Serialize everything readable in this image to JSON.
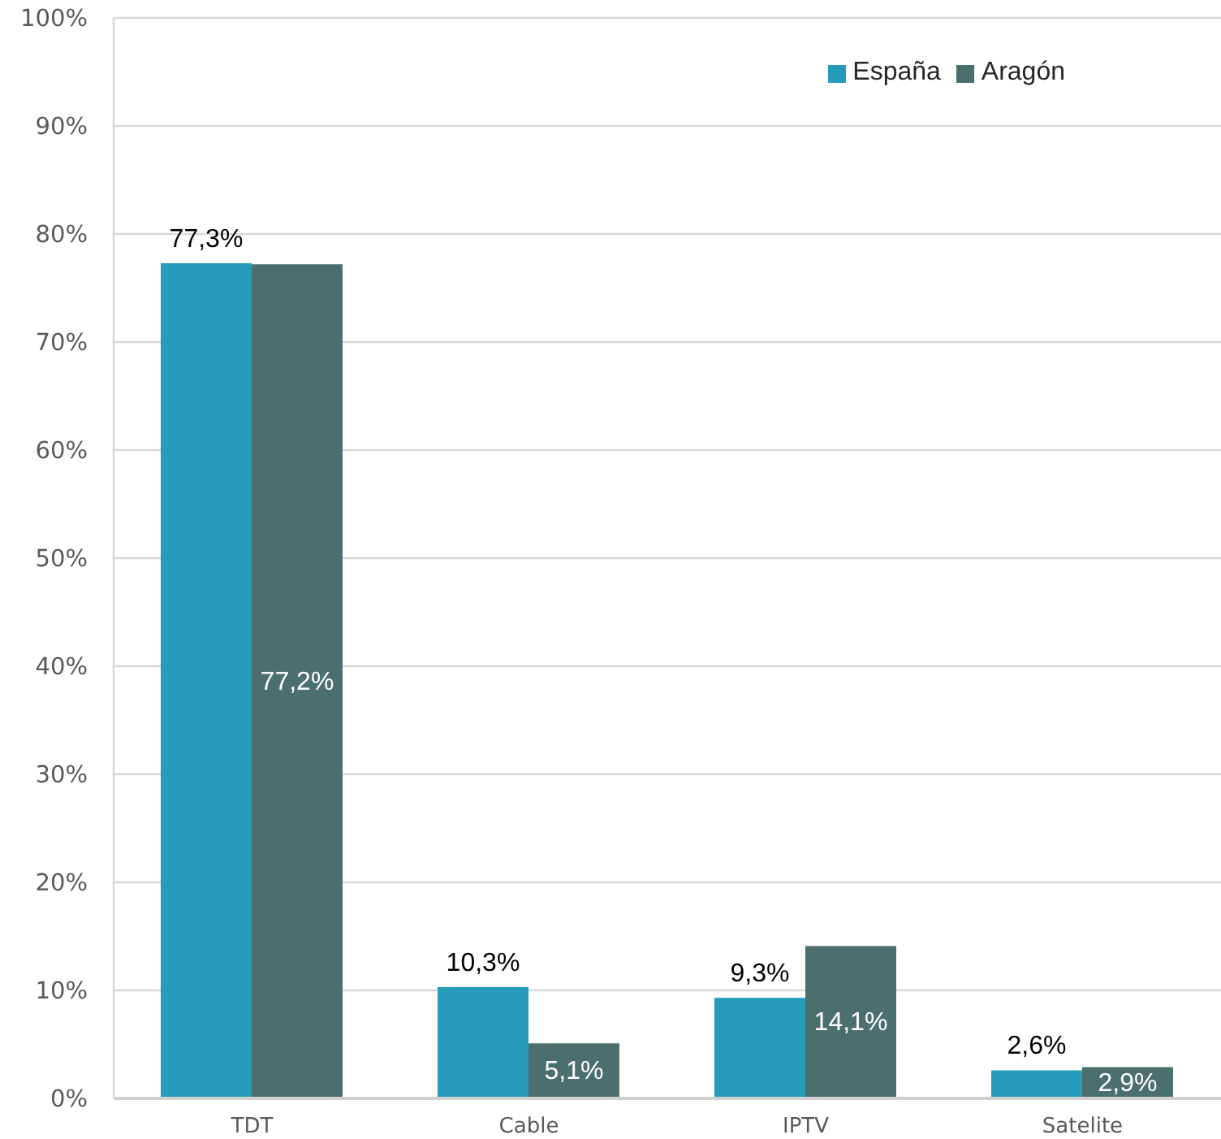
{
  "chart_data": {
    "type": "bar",
    "categories": [
      "TDT",
      "Cable",
      "IPTV",
      "Satelite"
    ],
    "series": [
      {
        "name": "España",
        "color": "#269cba",
        "values": [
          77.3,
          10.3,
          9.3,
          2.6
        ],
        "value_labels": [
          "77,3%",
          "10,3%",
          "9,3%",
          "2,6%"
        ]
      },
      {
        "name": "Aragón",
        "color": "#4b6f6c",
        "values": [
          77.2,
          5.1,
          14.1,
          2.9
        ],
        "value_labels": [
          "77,2%",
          "5,1%",
          "14,1%",
          "2,9%"
        ]
      }
    ],
    "ylim": [
      0,
      100
    ],
    "yticks": [
      {
        "value": 0,
        "label": "0%"
      },
      {
        "value": 10,
        "label": "10%"
      },
      {
        "value": 20,
        "label": "20%"
      },
      {
        "value": 30,
        "label": "30%"
      },
      {
        "value": 40,
        "label": "40%"
      },
      {
        "value": 50,
        "label": "50%"
      },
      {
        "value": 60,
        "label": "60%"
      },
      {
        "value": 70,
        "label": "70%"
      },
      {
        "value": 80,
        "label": "80%"
      },
      {
        "value": 90,
        "label": "90%"
      },
      {
        "value": 100,
        "label": "100%"
      }
    ],
    "grid": "y",
    "legend": "top right"
  }
}
